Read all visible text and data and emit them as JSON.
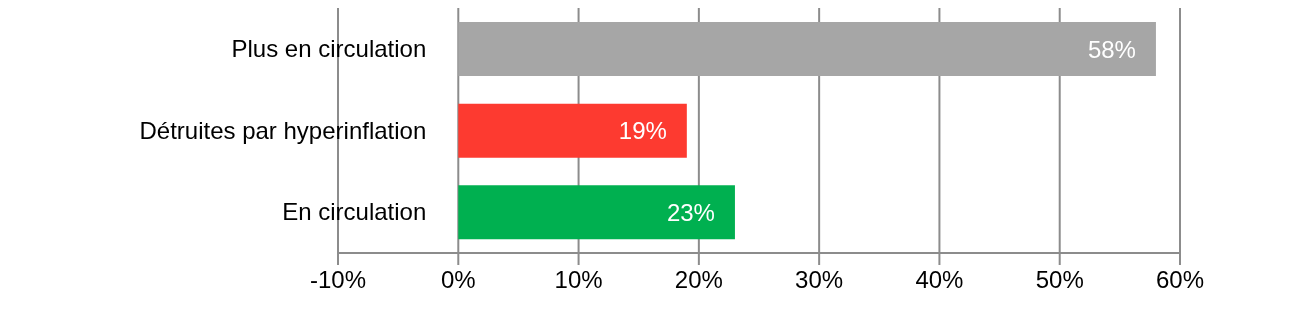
{
  "chart_data": {
    "type": "bar",
    "orientation": "horizontal",
    "categories": [
      "Plus en circulation",
      "Détruites par hyperinflation",
      "En circulation"
    ],
    "values": [
      58,
      19,
      23
    ],
    "colors": [
      "#a6a6a6",
      "#fd3a30",
      "#00b050"
    ],
    "value_labels": [
      "58%",
      "19%",
      "23%"
    ],
    "xlim": [
      -10,
      60
    ],
    "xticks": [
      {
        "value": -10,
        "label": "-10%"
      },
      {
        "value": 0,
        "label": "0%"
      },
      {
        "value": 10,
        "label": "10%"
      },
      {
        "value": 20,
        "label": "20%"
      },
      {
        "value": 30,
        "label": "30%"
      },
      {
        "value": 40,
        "label": "40%"
      },
      {
        "value": 50,
        "label": "50%"
      },
      {
        "value": 60,
        "label": "60%"
      }
    ],
    "grid": "x"
  }
}
